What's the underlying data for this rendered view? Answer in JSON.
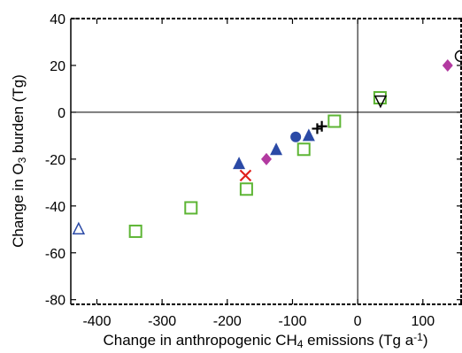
{
  "chart_data": {
    "type": "scatter",
    "title": "",
    "xlabel": {
      "main": "Change in anthropogenic CH",
      "sub": "4",
      "rest": " emissions (Tg a",
      "sup": "-1",
      "end": ")"
    },
    "ylabel": {
      "main": "Change in O",
      "sub": "3",
      "rest": " burden (Tg)"
    },
    "xlim": [
      -440,
      160
    ],
    "ylim": [
      -82,
      40
    ],
    "xticks": [
      -400,
      -300,
      -200,
      -100,
      0,
      100
    ],
    "yticks": [
      -80,
      -60,
      -40,
      -20,
      0,
      20,
      40
    ],
    "grid": false,
    "reference_lines": {
      "x": 0,
      "y": 0
    },
    "series": [
      {
        "marker": "square-open",
        "color": "#5db534",
        "points": [
          [
            -340,
            -51
          ],
          [
            -255,
            -41
          ],
          [
            -170,
            -33
          ],
          [
            -82,
            -16
          ],
          [
            -35,
            -4
          ],
          [
            35,
            6
          ]
        ]
      },
      {
        "marker": "triangle-filled",
        "color": "#2b4aa6",
        "points": [
          [
            -182,
            -22
          ],
          [
            -125,
            -16
          ],
          [
            -75,
            -10
          ]
        ]
      },
      {
        "marker": "circle-filled",
        "color": "#2b4aa6",
        "points": [
          [
            -95,
            -10.5
          ]
        ]
      },
      {
        "marker": "triangle-open",
        "color": "#2b4aa6",
        "points": [
          [
            -428,
            -50
          ]
        ]
      },
      {
        "marker": "diamond-filled",
        "color": "#b23aa0",
        "points": [
          [
            -140,
            -20
          ],
          [
            138,
            20
          ]
        ]
      },
      {
        "marker": "x",
        "color": "#e0201b",
        "points": [
          [
            -172,
            -27
          ]
        ]
      },
      {
        "marker": "plus",
        "color": "#000000",
        "points": [
          [
            -62,
            -7
          ],
          [
            -55,
            -6
          ]
        ]
      },
      {
        "marker": "triangle-down-open",
        "color": "#000000",
        "points": [
          [
            35,
            5
          ]
        ]
      },
      {
        "marker": "circle-open",
        "color": "#000000",
        "points": [
          [
            158,
            24
          ]
        ]
      }
    ]
  }
}
